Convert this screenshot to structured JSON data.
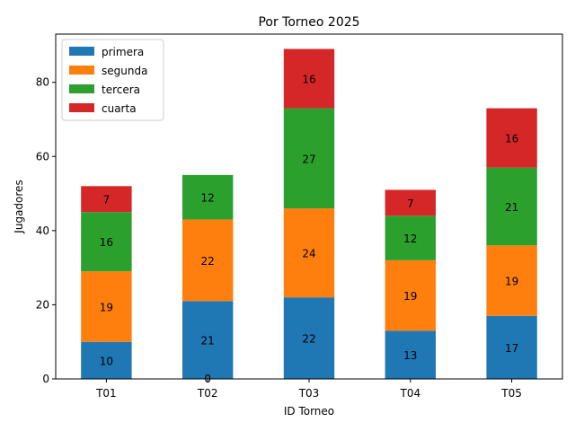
{
  "chart_data": {
    "type": "bar",
    "stacked": true,
    "title": "Por Torneo 2025",
    "xlabel": "ID Torneo",
    "ylabel": "Jugadores",
    "categories": [
      "T01",
      "T02",
      "T03",
      "T04",
      "T05"
    ],
    "ylim": [
      0,
      93
    ],
    "yticks": [
      0,
      20,
      40,
      60,
      80
    ],
    "legend_position": "top-left",
    "series": [
      {
        "name": "primera",
        "color": "#1f77b4",
        "values": [
          10,
          21,
          22,
          13,
          17
        ]
      },
      {
        "name": "segunda",
        "color": "#ff7f0e",
        "values": [
          19,
          22,
          24,
          19,
          19
        ]
      },
      {
        "name": "tercera",
        "color": "#2ca02c",
        "values": [
          16,
          12,
          27,
          12,
          21
        ]
      },
      {
        "name": "cuarta",
        "color": "#d62728",
        "values": [
          7,
          0,
          16,
          7,
          16
        ]
      }
    ]
  }
}
